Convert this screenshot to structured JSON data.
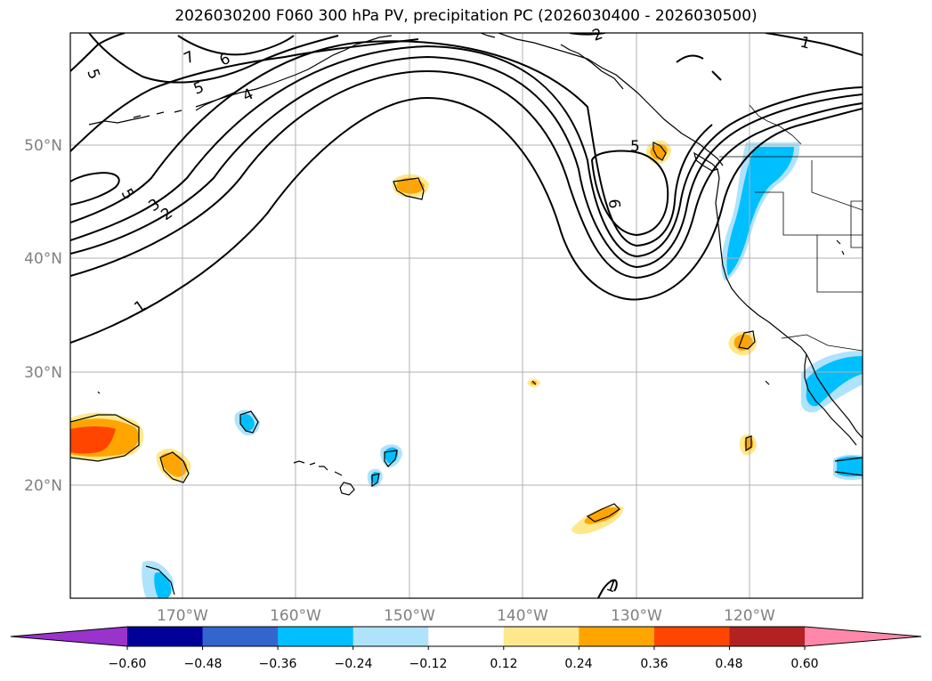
{
  "title": "2026030200 F060 300 hPa PV, precipitation PC (2026030400 - 2026030500)",
  "map": {
    "lat_labels": [
      "50°N",
      "40°N",
      "30°N",
      "20°N"
    ],
    "lon_labels": [
      "170°W",
      "160°W",
      "150°W",
      "140°W",
      "130°W",
      "120°W"
    ],
    "contour_labels": [
      "5",
      "7",
      "6",
      "5",
      "4",
      "5",
      "3",
      "2",
      "1",
      "2",
      "1",
      "5",
      "6",
      "1"
    ]
  },
  "colorbar": {
    "ticks": [
      "−0.60",
      "−0.48",
      "−0.36",
      "−0.24",
      "−0.12",
      "0.12",
      "0.24",
      "0.36",
      "0.48",
      "0.60"
    ],
    "colors": [
      "#9933cc",
      "#000099",
      "#3366cc",
      "#00bfff",
      "#aee3fb",
      "#ffffff",
      "#ffe88c",
      "#ffa500",
      "#ff4500",
      "#b22222",
      "#ff88aa"
    ]
  }
}
